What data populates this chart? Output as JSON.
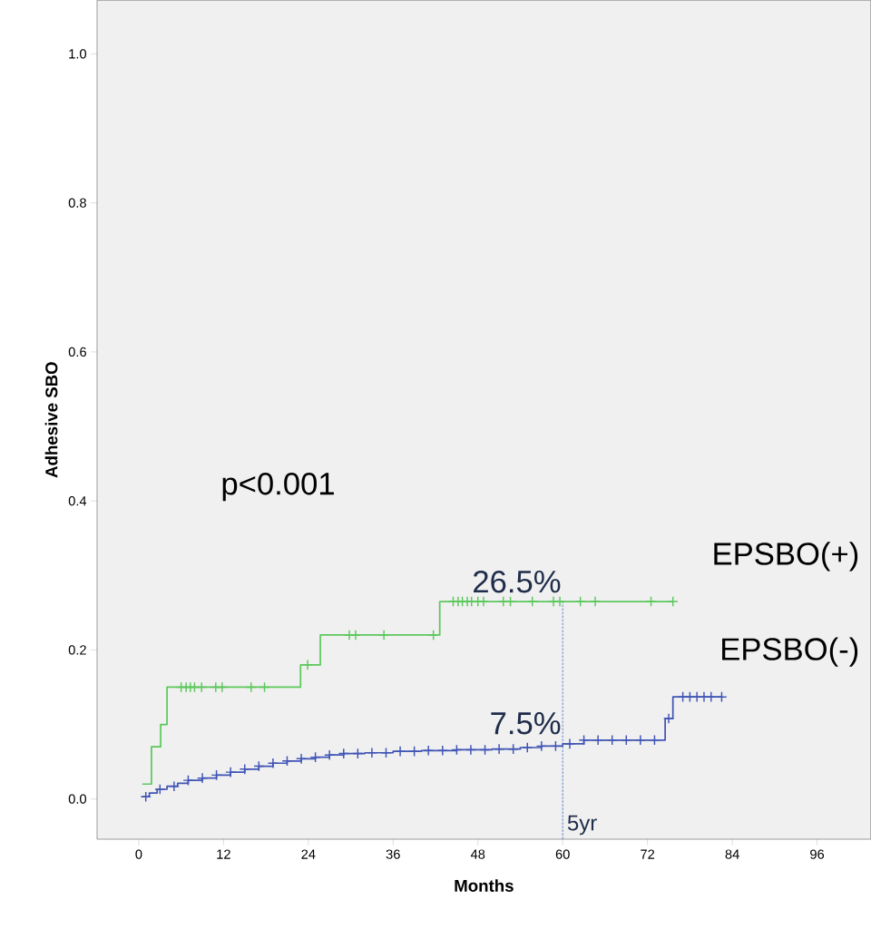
{
  "chart_data": {
    "type": "step",
    "xlabel": "Months",
    "ylabel": "Adhesive SBO",
    "xlim": [
      -5.9,
      103.6
    ],
    "ylim": [
      -0.054,
      1.072
    ],
    "xticks": [
      0,
      12,
      24,
      36,
      48,
      60,
      72,
      84,
      96
    ],
    "yticks": [
      {
        "value": 0,
        "label": "0.0"
      },
      {
        "value": 0.2,
        "label": "0.2"
      },
      {
        "value": 0.4,
        "label": "0.4"
      },
      {
        "value": 0.6,
        "label": "0.6"
      },
      {
        "value": 0.8,
        "label": "0.8"
      },
      {
        "value": 1.0,
        "label": "1.0"
      }
    ],
    "grid": false,
    "line_style": "solid",
    "marker": "none",
    "series": [
      {
        "name": "EPSBO(+)",
        "color": "#5cc85c",
        "x": [
          0.5,
          1.8,
          3.1,
          4.0,
          22.9,
          25.7,
          42.6,
          75.6
        ],
        "values": [
          0.02,
          0.07,
          0.1,
          0.15,
          0.18,
          0.22,
          0.265,
          0.265
        ]
      },
      {
        "name": "EPSBO(-)",
        "color": "#4055b5",
        "x": [
          0.5,
          1.5,
          2.6,
          4,
          5.5,
          7,
          9,
          11,
          13,
          15,
          17,
          19,
          21,
          23,
          25,
          27,
          29,
          32,
          36,
          40,
          45,
          50,
          54,
          57,
          60,
          63,
          74.5,
          75.6,
          82.5
        ],
        "values": [
          0.003,
          0.008,
          0.013,
          0.017,
          0.021,
          0.025,
          0.028,
          0.032,
          0.036,
          0.04,
          0.044,
          0.048,
          0.051,
          0.054,
          0.056,
          0.059,
          0.061,
          0.062,
          0.064,
          0.065,
          0.066,
          0.067,
          0.069,
          0.071,
          0.074,
          0.079,
          0.108,
          0.137,
          0.137
        ]
      },
      {
        "type": "scatter",
        "marker": "cross",
        "color": "#5cc85c",
        "x": [
          6.0,
          6.7,
          7.3,
          7.9,
          8.9,
          10.9,
          11.8,
          15.9,
          17.8,
          23.9,
          29.8,
          30.7,
          34.7,
          41.7,
          44.5,
          45.2,
          45.8,
          46.5,
          47.1,
          48.0,
          48.8,
          51.6,
          52.6,
          55.7,
          58.7,
          59.6,
          62.5,
          64.6,
          72.5,
          75.6
        ],
        "values": [
          0.15,
          0.15,
          0.15,
          0.15,
          0.15,
          0.15,
          0.15,
          0.15,
          0.15,
          0.18,
          0.22,
          0.22,
          0.22,
          0.22,
          0.265,
          0.265,
          0.265,
          0.265,
          0.265,
          0.265,
          0.265,
          0.265,
          0.265,
          0.265,
          0.265,
          0.265,
          0.265,
          0.265,
          0.265,
          0.265
        ]
      },
      {
        "type": "scatter",
        "marker": "cross",
        "color": "#4055b5",
        "x": [
          1,
          3,
          5,
          7,
          9,
          11,
          13,
          15,
          17,
          19,
          21,
          23,
          25,
          27,
          29,
          31,
          33,
          35,
          37,
          39,
          41,
          43,
          45,
          47,
          49,
          51,
          53,
          55,
          57,
          59,
          61,
          63,
          65,
          67,
          69,
          71,
          73,
          75,
          77,
          78,
          79,
          80,
          81,
          82.5
        ],
        "values": [
          0.003,
          0.013,
          0.017,
          0.025,
          0.028,
          0.032,
          0.036,
          0.04,
          0.044,
          0.048,
          0.051,
          0.054,
          0.056,
          0.059,
          0.061,
          0.061,
          0.062,
          0.062,
          0.064,
          0.064,
          0.065,
          0.065,
          0.066,
          0.066,
          0.066,
          0.067,
          0.067,
          0.069,
          0.071,
          0.071,
          0.074,
          0.079,
          0.079,
          0.079,
          0.079,
          0.079,
          0.079,
          0.108,
          0.137,
          0.137,
          0.137,
          0.137,
          0.137,
          0.137
        ]
      }
    ],
    "ref_lines": [
      {
        "axis": "x",
        "value": 60,
        "label": "5yr",
        "color": "#6a8fcf",
        "line_style": "dashed"
      }
    ],
    "annotations": [
      "p<0.001",
      {
        "text": "26.5%",
        "x": 60,
        "y": 0.265
      },
      {
        "text": "7.5%",
        "x": 60,
        "y": 0.075
      }
    ]
  }
}
